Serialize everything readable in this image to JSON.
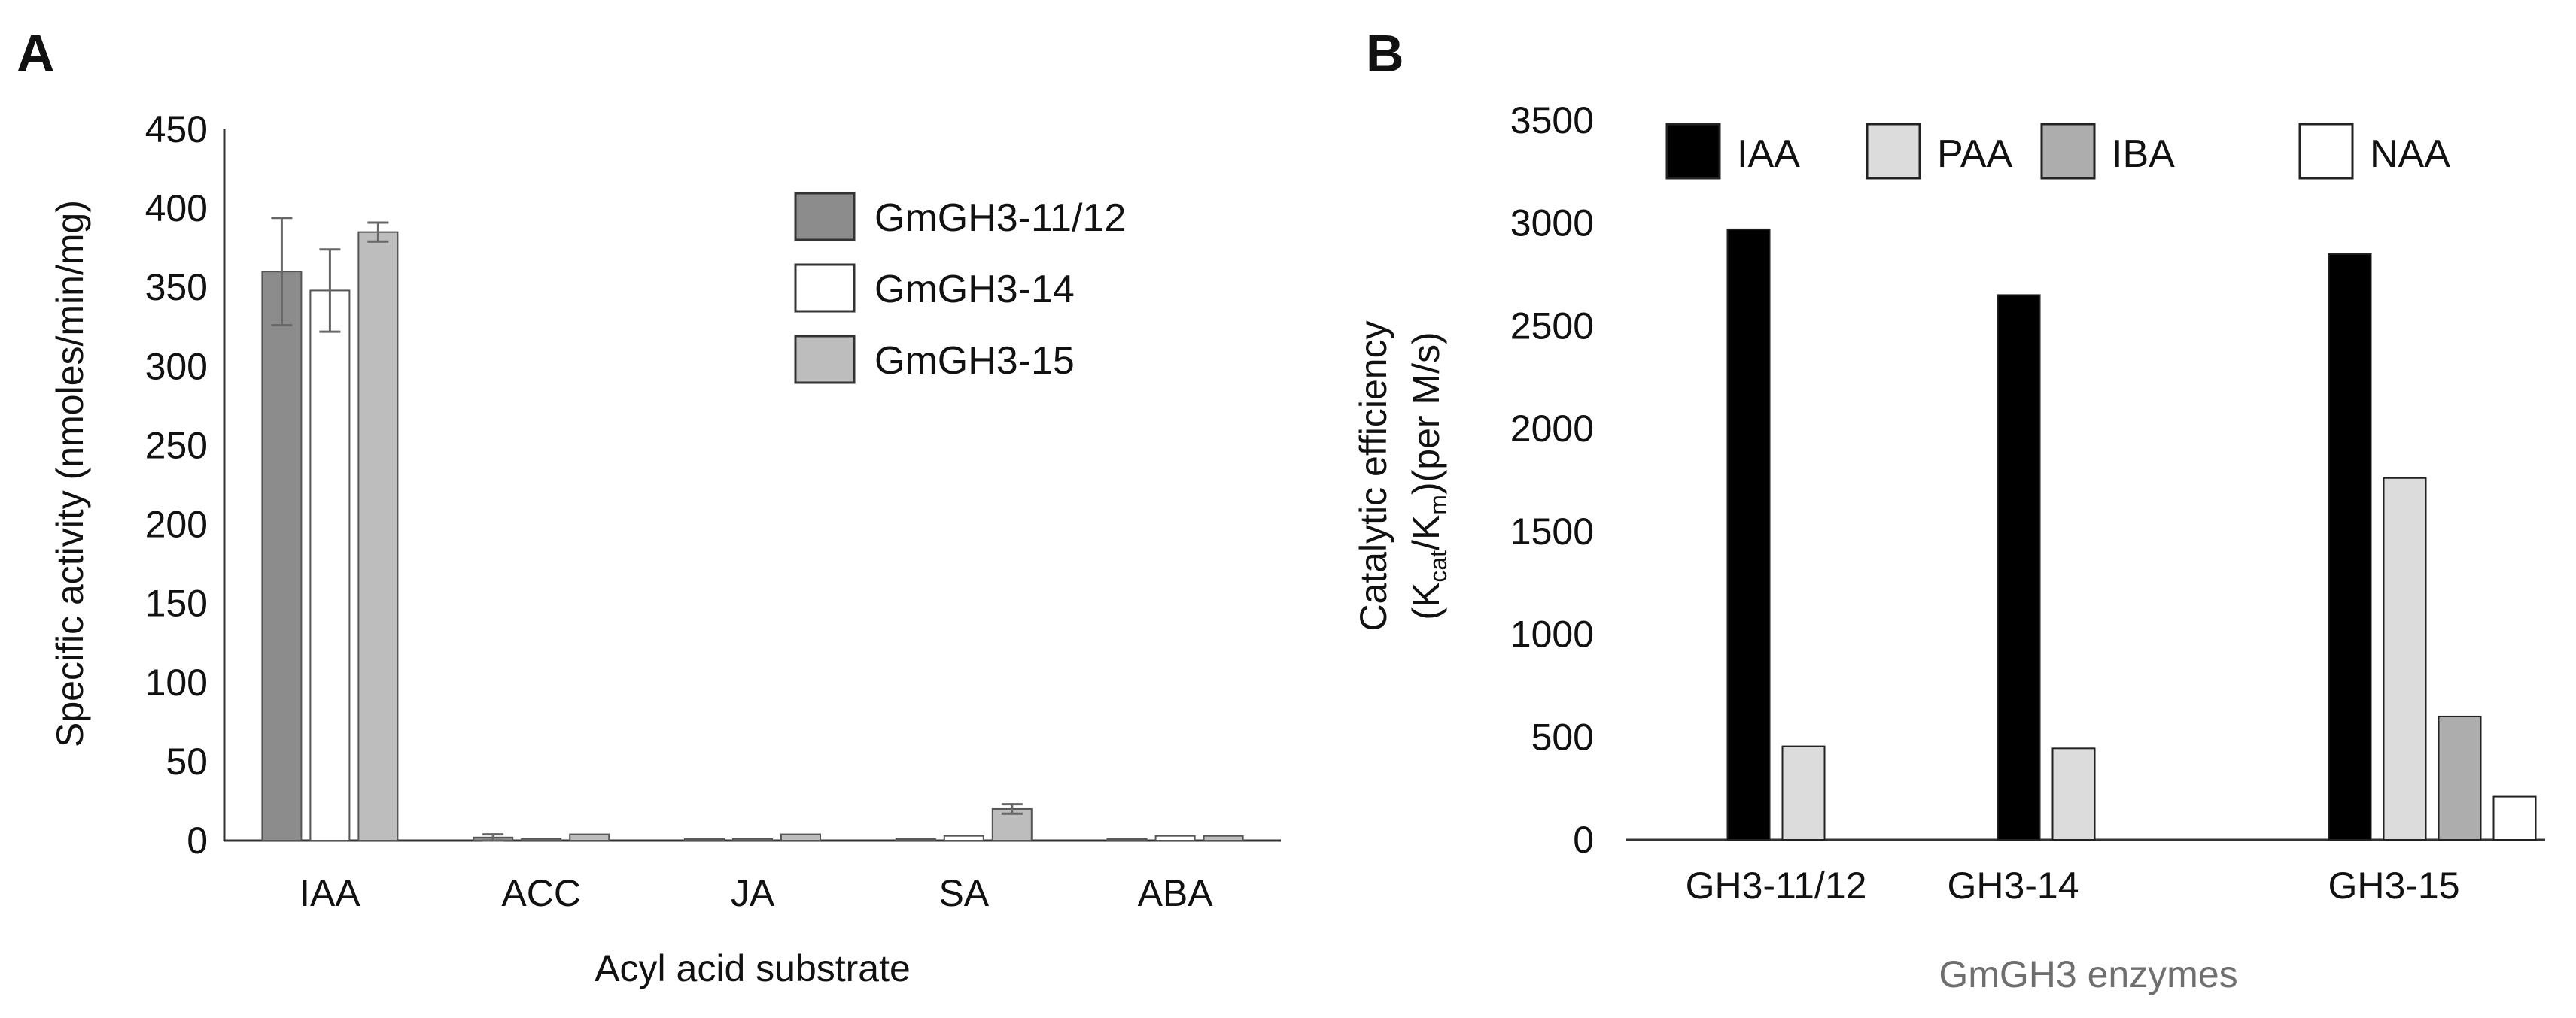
{
  "figure": {
    "panel_a_label": "A",
    "panel_b_label": "B"
  },
  "chart_data": [
    {
      "type": "bar",
      "panel": "A",
      "title": "",
      "xlabel": "Acyl acid substrate",
      "ylabel": "Specific activity (nmoles/min/mg)",
      "ylim": [
        0,
        450
      ],
      "yticks": [
        0,
        50,
        100,
        150,
        200,
        250,
        300,
        350,
        400,
        450
      ],
      "grid": false,
      "legend_position": "top-right",
      "categories": [
        "IAA",
        "ACC",
        "JA",
        "SA",
        "ABA"
      ],
      "series": [
        {
          "name": "GmGH3-11/12",
          "color": "#8c8c8c",
          "values": [
            360,
            2,
            1,
            1,
            1
          ],
          "errors": [
            34,
            2,
            0,
            0,
            0
          ]
        },
        {
          "name": "GmGH3-14",
          "color": "#ffffff",
          "values": [
            348,
            1,
            1,
            3,
            3
          ],
          "errors": [
            26,
            0,
            0,
            0,
            0
          ]
        },
        {
          "name": "GmGH3-15",
          "color": "#bdbdbd",
          "values": [
            385,
            4,
            4,
            20,
            3
          ],
          "errors": [
            6,
            0,
            0,
            3,
            0
          ]
        }
      ]
    },
    {
      "type": "bar",
      "panel": "B",
      "title": "",
      "xlabel": "GmGH3 enzymes",
      "ylabel": "Catalytic efficiency",
      "ylabel_line2": {
        "open": "(K",
        "sub1": "cat",
        "slash": "/K",
        "sub2": "m",
        "close": ")(per M/s)"
      },
      "ylim": [
        0,
        3500
      ],
      "yticks": [
        0,
        500,
        1000,
        1500,
        2000,
        2500,
        3000,
        3500
      ],
      "grid": false,
      "legend_position": "top",
      "categories": [
        "GH3-11/12",
        "GH3-14",
        "GH3-15"
      ],
      "series": [
        {
          "name": "IAA",
          "color": "#000000",
          "values": [
            2970,
            2650,
            2850
          ]
        },
        {
          "name": "PAA",
          "color": "#dcdcdc",
          "values": [
            455,
            445,
            1760
          ]
        },
        {
          "name": "IBA",
          "color": "#adadad",
          "values": [
            0,
            0,
            600
          ]
        },
        {
          "name": "NAA",
          "color": "#ffffff",
          "values": [
            0,
            0,
            210
          ]
        }
      ]
    }
  ]
}
